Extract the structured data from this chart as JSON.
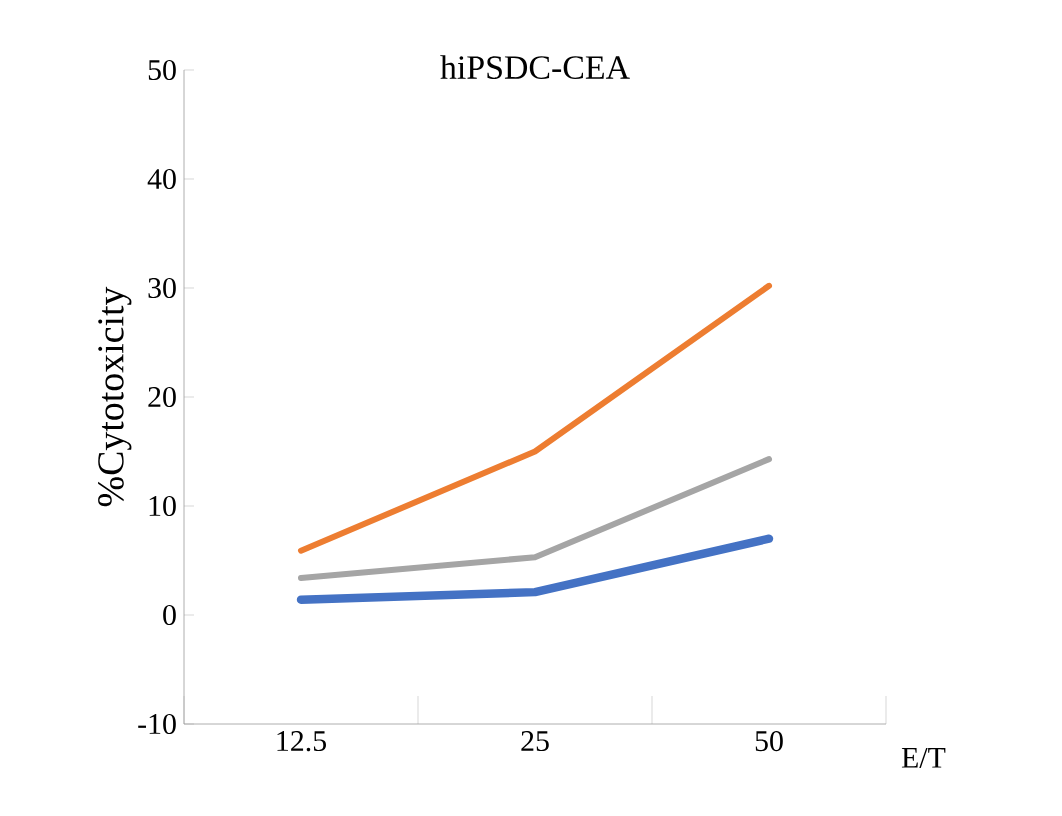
{
  "chart_data": {
    "type": "line",
    "title": "hiPSDC-CEA",
    "xlabel": "E/T",
    "ylabel": "%Cytotoxicity",
    "categories": [
      "12.5",
      "25",
      "50"
    ],
    "series": [
      {
        "color": "#4472c4",
        "values": [
          1.4,
          2.1,
          7.0
        ]
      },
      {
        "color": "#ed7d31",
        "values": [
          5.9,
          15.0,
          30.2
        ]
      },
      {
        "color": "#a5a5a5",
        "values": [
          3.4,
          5.3,
          14.3
        ]
      }
    ],
    "ylim": [
      -10,
      50
    ],
    "yticks": [
      -10,
      0,
      10,
      20,
      30,
      40,
      50
    ],
    "grid": false,
    "marker": "none",
    "line_style": "solid"
  }
}
